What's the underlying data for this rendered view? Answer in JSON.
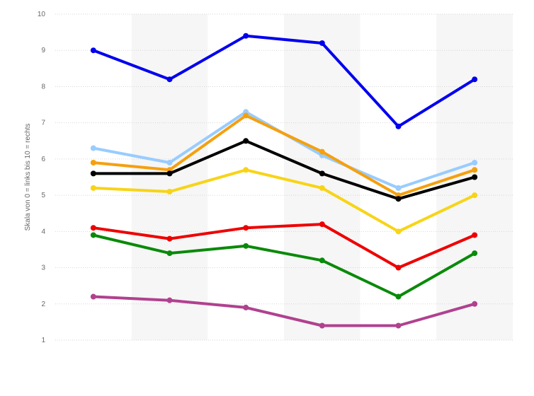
{
  "chart_data": {
    "type": "line",
    "title": "",
    "xlabel": "",
    "ylabel": "Skala von 0 = links bis 10 = rechts",
    "ylim": [
      1,
      10
    ],
    "yticks": [
      1,
      2,
      3,
      4,
      5,
      6,
      7,
      8,
      9,
      10
    ],
    "ytick_labels": [
      "1",
      "2",
      "3",
      "4",
      "5",
      "6",
      "7",
      "8",
      "9",
      "10"
    ],
    "grid": true,
    "legend": "none",
    "categories": [
      "",
      "",
      "",
      "",
      "",
      ""
    ],
    "series": [
      {
        "name": "blue",
        "color": "#0000ee",
        "values": [
          9.0,
          8.2,
          9.4,
          9.2,
          6.9,
          8.2
        ]
      },
      {
        "name": "light-blue",
        "color": "#99ccff",
        "values": [
          6.3,
          5.9,
          7.3,
          6.1,
          5.2,
          5.9
        ]
      },
      {
        "name": "orange",
        "color": "#f5a00f",
        "values": [
          5.9,
          5.7,
          7.2,
          6.2,
          5.0,
          5.7
        ]
      },
      {
        "name": "black",
        "color": "#000000",
        "values": [
          5.6,
          5.6,
          6.5,
          5.6,
          4.9,
          5.5
        ]
      },
      {
        "name": "yellow",
        "color": "#f7d417",
        "values": [
          5.2,
          5.1,
          5.7,
          5.2,
          4.0,
          5.0
        ]
      },
      {
        "name": "red",
        "color": "#ee0000",
        "values": [
          4.1,
          3.8,
          4.1,
          4.2,
          3.0,
          3.9
        ]
      },
      {
        "name": "green",
        "color": "#0a8a0a",
        "values": [
          3.9,
          3.4,
          3.6,
          3.2,
          2.2,
          3.4
        ]
      },
      {
        "name": "purple",
        "color": "#b0418f",
        "values": [
          2.2,
          2.1,
          1.9,
          1.4,
          1.4,
          2.0
        ]
      }
    ]
  }
}
